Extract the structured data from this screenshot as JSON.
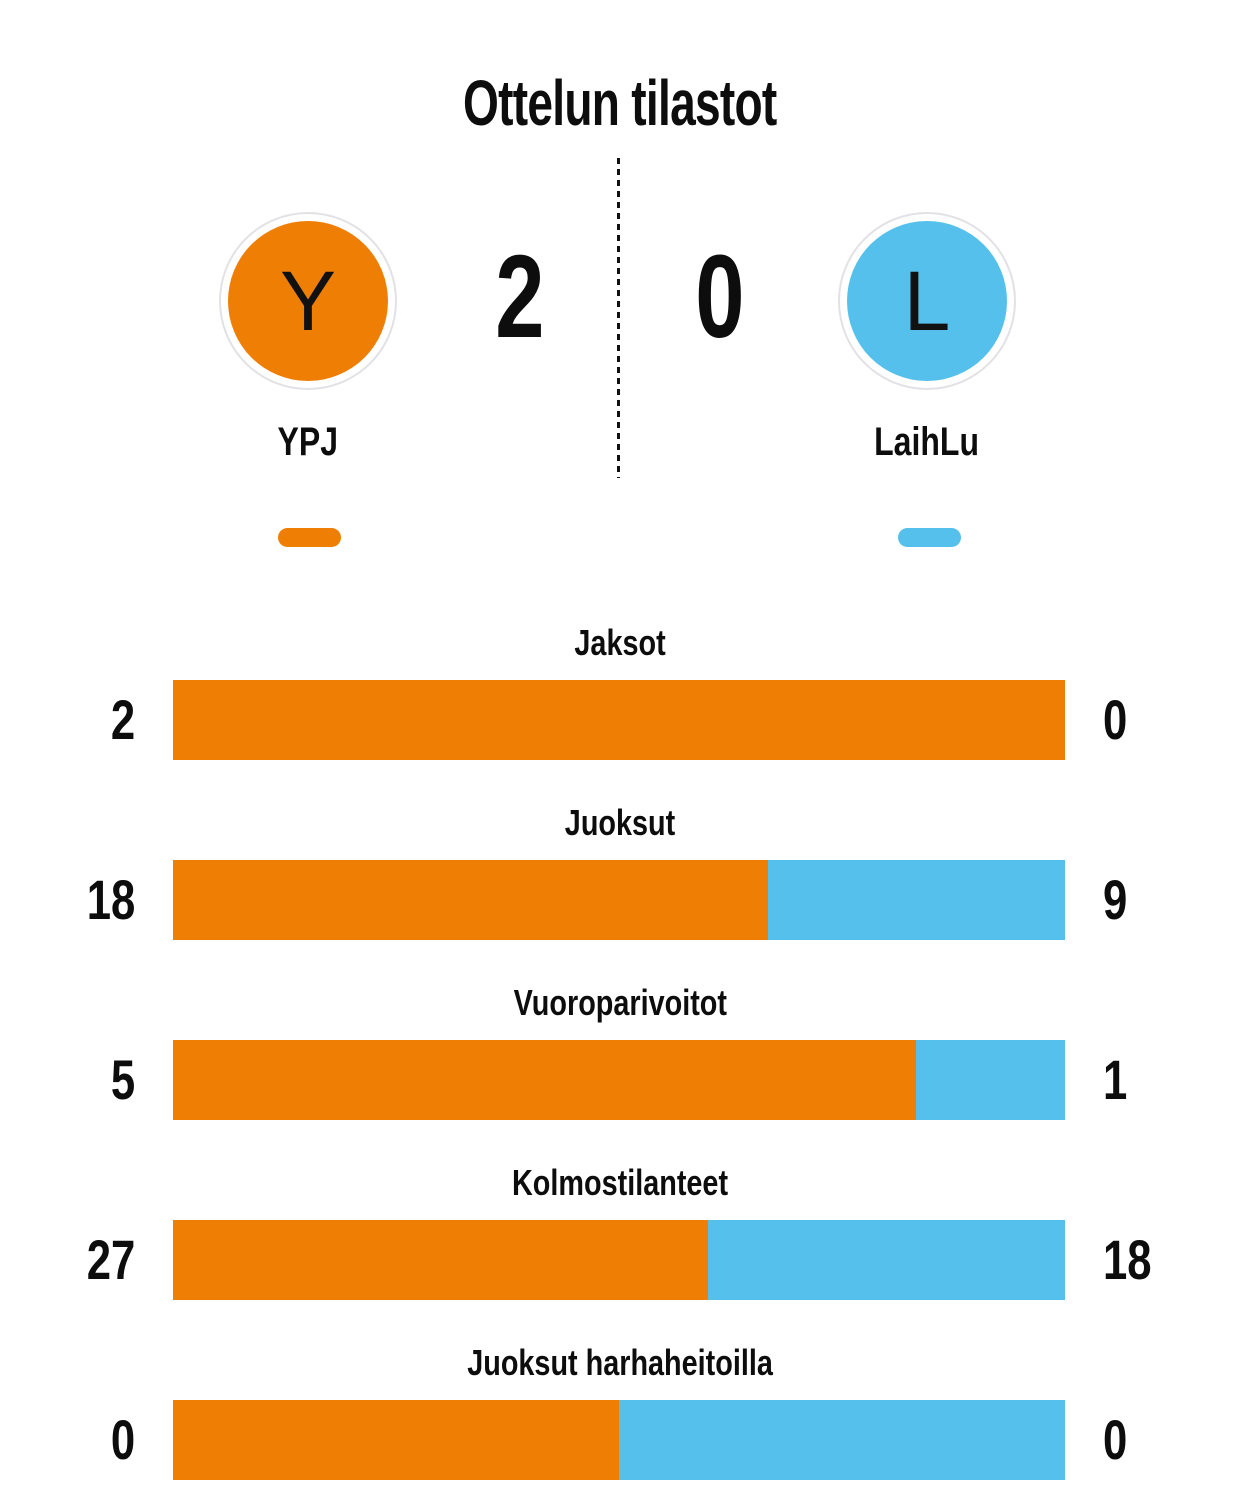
{
  "title": "Ottelun tilastot",
  "colors": {
    "home": "#ee7f04",
    "away": "#55c0ec",
    "text": "#0d0d0d",
    "badge_ring": "#e2e2e6"
  },
  "scoreboard": {
    "home": {
      "letter": "Y",
      "name": "YPJ",
      "score": "2"
    },
    "away": {
      "letter": "L",
      "name": "LaihLu",
      "score": "0"
    }
  },
  "stats": [
    {
      "label": "Jaksot",
      "home_value": "2",
      "away_value": "0",
      "home_pct": "100%"
    },
    {
      "label": "Juoksut",
      "home_value": "18",
      "away_value": "9",
      "home_pct": "66.667%"
    },
    {
      "label": "Vuoroparivoitot",
      "home_value": "5",
      "away_value": "1",
      "home_pct": "83.333%"
    },
    {
      "label": "Kolmostilanteet",
      "home_value": "27",
      "away_value": "18",
      "home_pct": "60%"
    },
    {
      "label": "Juoksut harhaheitoilla",
      "home_value": "0",
      "away_value": "0",
      "home_pct": "50%"
    }
  ],
  "chart_data": {
    "type": "bar",
    "subtype": "stacked-proportion-horizontal",
    "title": "Ottelun tilastot",
    "categories": [
      "Jaksot",
      "Juoksut",
      "Vuoroparivoitot",
      "Kolmostilanteet",
      "Juoksut harhaheitoilla"
    ],
    "series": [
      {
        "name": "YPJ",
        "color": "#ee7f04",
        "values": [
          2,
          18,
          5,
          27,
          0
        ]
      },
      {
        "name": "LaihLu",
        "color": "#55c0ec",
        "values": [
          0,
          9,
          1,
          18,
          0
        ]
      }
    ],
    "home_fractions": [
      1.0,
      0.6667,
      0.8333,
      0.6,
      0.5
    ],
    "score": {
      "YPJ": 2,
      "LaihLu": 0
    },
    "legend_position": "top-under-team-names",
    "grid": false
  }
}
